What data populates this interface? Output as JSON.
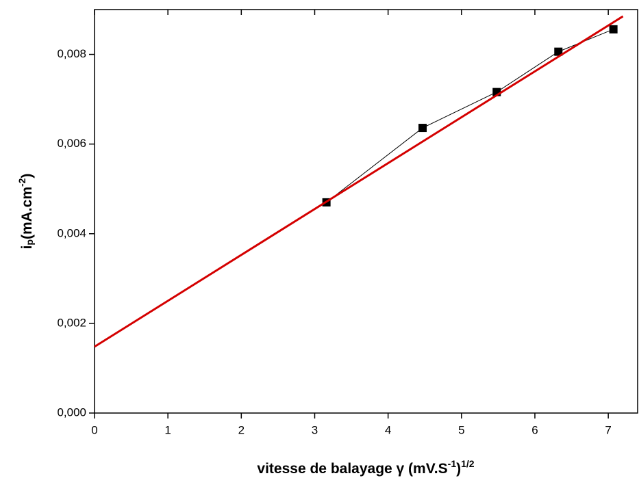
{
  "chart_data": {
    "type": "line",
    "xlabel": [
      "vitesse de balayage γ (mV.S",
      "-1",
      ")",
      "1/2"
    ],
    "ylabel": [
      "i",
      "p",
      "(mA.cm",
      "-2",
      ")"
    ],
    "xlim": [
      0,
      7.4
    ],
    "ylim": [
      0,
      0.009
    ],
    "xticks": [
      0,
      1,
      2,
      3,
      4,
      5,
      6,
      7
    ],
    "yticks": [
      {
        "value": 0,
        "label": "0,000"
      },
      {
        "value": 0.002,
        "label": "0,002"
      },
      {
        "value": 0.004,
        "label": "0,004"
      },
      {
        "value": 0.006,
        "label": "0,006"
      },
      {
        "value": 0.008,
        "label": "0,008"
      }
    ],
    "series": [
      {
        "color": "#000000",
        "marker": "square",
        "x": [
          3.16,
          4.47,
          5.48,
          6.32,
          7.07
        ],
        "values": [
          0.0047,
          0.00636,
          0.00716,
          0.00806,
          0.00856
        ]
      },
      {
        "color": "#d40000",
        "marker": "none",
        "x": [
          0,
          7.2
        ],
        "values": [
          0.00148,
          0.00885
        ]
      }
    ]
  }
}
